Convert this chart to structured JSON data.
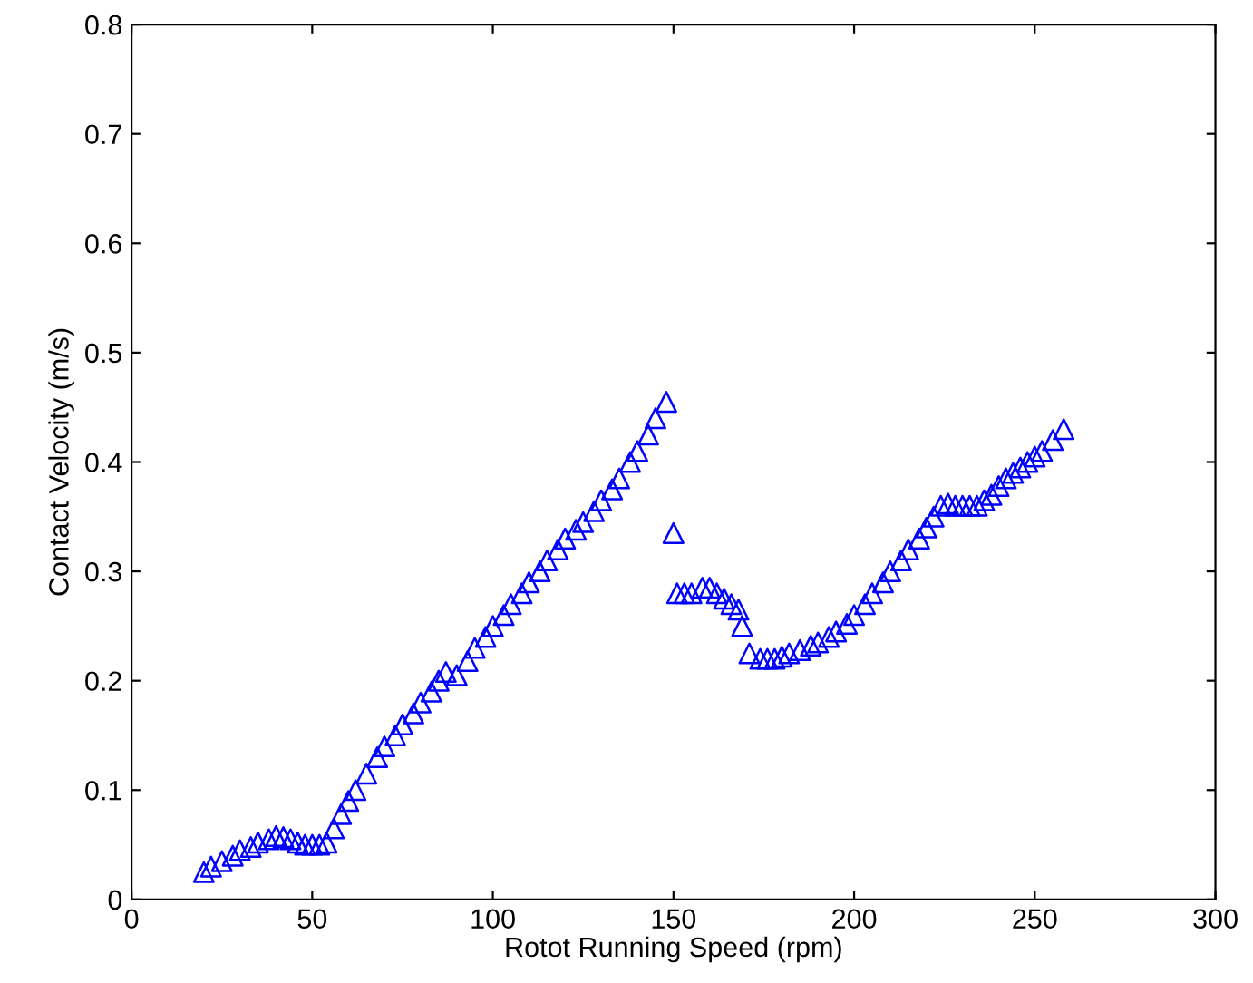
{
  "chart_data": {
    "type": "scatter",
    "xlabel": "Rotot Running Speed (rpm)",
    "ylabel": "Contact Velocity (m/s)",
    "xlim": [
      0,
      300
    ],
    "ylim": [
      0,
      0.8
    ],
    "xticks": [
      0,
      50,
      100,
      150,
      200,
      250,
      300
    ],
    "yticks": [
      0,
      0.1,
      0.2,
      0.3,
      0.4,
      0.5,
      0.6,
      0.7,
      0.8
    ],
    "grid": false,
    "legend": false,
    "marker": "triangle",
    "series": [
      {
        "color": "#0000ff",
        "x": [
          20,
          22,
          25,
          28,
          30,
          33,
          35,
          38,
          40,
          42,
          44,
          46,
          48,
          50,
          52,
          54,
          56,
          58,
          60,
          62,
          65,
          68,
          70,
          73,
          75,
          78,
          80,
          83,
          85,
          87,
          90,
          93,
          95,
          98,
          100,
          103,
          105,
          108,
          110,
          113,
          115,
          118,
          120,
          123,
          125,
          128,
          130,
          133,
          135,
          138,
          140,
          143,
          145,
          148,
          150,
          151,
          153,
          155,
          158,
          160,
          162,
          164,
          166,
          168,
          169,
          171,
          174,
          176,
          178,
          180,
          182,
          185,
          188,
          190,
          193,
          195,
          198,
          200,
          203,
          205,
          208,
          210,
          213,
          215,
          218,
          220,
          222,
          224,
          226,
          228,
          230,
          232,
          234,
          236,
          238,
          240,
          242,
          244,
          246,
          248,
          250,
          252,
          255,
          258
        ],
        "values": [
          0.025,
          0.03,
          0.035,
          0.04,
          0.045,
          0.048,
          0.052,
          0.055,
          0.058,
          0.057,
          0.055,
          0.052,
          0.05,
          0.05,
          0.05,
          0.052,
          0.065,
          0.078,
          0.09,
          0.1,
          0.115,
          0.13,
          0.14,
          0.15,
          0.16,
          0.17,
          0.18,
          0.19,
          0.2,
          0.208,
          0.205,
          0.218,
          0.23,
          0.24,
          0.25,
          0.26,
          0.27,
          0.28,
          0.29,
          0.3,
          0.31,
          0.32,
          0.33,
          0.338,
          0.345,
          0.355,
          0.365,
          0.375,
          0.385,
          0.4,
          0.41,
          0.425,
          0.44,
          0.455,
          0.335,
          0.28,
          0.28,
          0.28,
          0.285,
          0.285,
          0.28,
          0.275,
          0.27,
          0.265,
          0.25,
          0.225,
          0.22,
          0.22,
          0.22,
          0.222,
          0.225,
          0.228,
          0.232,
          0.235,
          0.24,
          0.245,
          0.252,
          0.26,
          0.27,
          0.28,
          0.29,
          0.3,
          0.31,
          0.32,
          0.33,
          0.34,
          0.35,
          0.36,
          0.362,
          0.36,
          0.36,
          0.36,
          0.36,
          0.365,
          0.37,
          0.378,
          0.385,
          0.39,
          0.395,
          0.4,
          0.405,
          0.41,
          0.42,
          0.43
        ]
      }
    ]
  }
}
